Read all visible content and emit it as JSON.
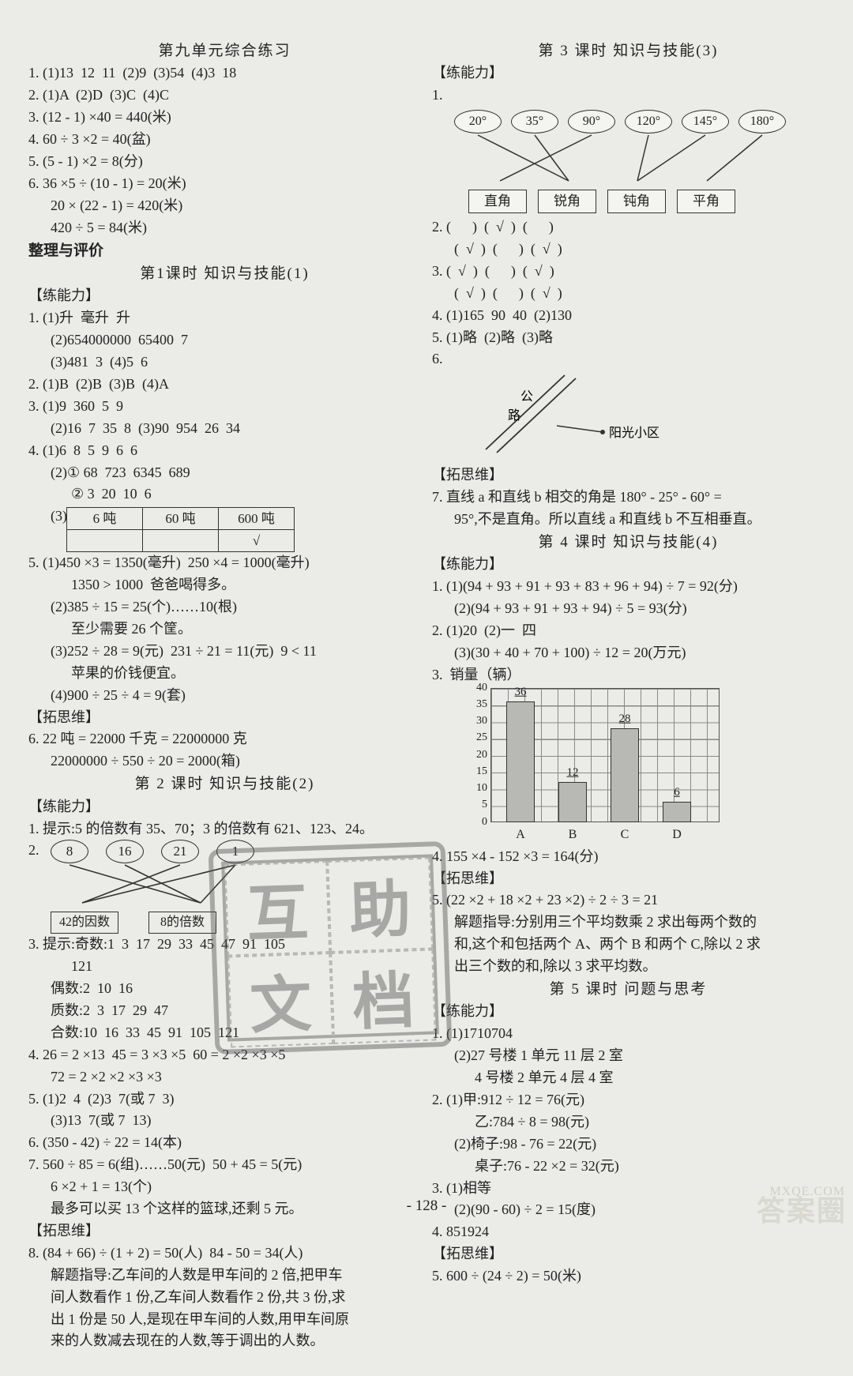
{
  "left": {
    "unit_title": "第九单元综合练习",
    "u9": {
      "l1": "1. (1)13  12  11  (2)9  (3)54  (4)3  18",
      "l2": "2. (1)A  (2)D  (3)C  (4)C",
      "l3": "3. (12 - 1) ×40 = 440(米)",
      "l4": "4. 60 ÷ 3 ×2 = 40(盆)",
      "l5": "5. (5 - 1) ×2 = 8(分)",
      "l6": "6. 36 ×5 ÷ (10 - 1) = 20(米)",
      "l6b": "20 × (22 - 1) = 420(米)",
      "l6c": "420 ÷ 5 = 84(米)"
    },
    "zhengli": "整理与评价",
    "k1_title": "第1课时  知识与技能(1)",
    "lab_lnl": "【练能力】",
    "k1": {
      "l1": "1. (1)升  毫升  升",
      "l1b": "(2)654000000  65400  7",
      "l1c": "(3)481  3  (4)5  6",
      "l2": "2. (1)B  (2)B  (3)B  (4)A",
      "l3": "3. (1)9  360  5  9",
      "l3b": "(2)16  7  35  8  (3)90  954  26  34",
      "l4": "4. (1)6  8  5  9  6  6",
      "l4b": "(2)① 68  723  6345  689",
      "l4c": "② 3  20  10  6",
      "l4d_label": "(3)",
      "tbl": {
        "h1": "6 吨",
        "h2": "60 吨",
        "h3": "600 吨",
        "check": "√"
      },
      "l5": "5. (1)450 ×3 = 1350(毫升)  250 ×4 = 1000(毫升)",
      "l5b": "1350 > 1000  爸爸喝得多。",
      "l5c": "(2)385 ÷ 15 = 25(个)……10(根)",
      "l5d": "至少需要 26 个筐。",
      "l5e": "(3)252 ÷ 28 = 9(元)  231 ÷ 21 = 11(元)  9 < 11",
      "l5f": "苹果的价钱便宜。",
      "l5g": "(4)900 ÷ 25 ÷ 4 = 9(套)"
    },
    "lab_tsw": "【拓思维】",
    "k1_tsw": {
      "l6": "6. 22 吨 = 22000 千克 = 22000000 克",
      "l6b": "22000000 ÷ 550 ÷ 20 = 2000(箱)"
    },
    "k2_title": "第 2 课时  知识与技能(2)",
    "k2": {
      "l1": "1. 提示:5 的倍数有 35、70；3 的倍数有 621、123、24。",
      "l2_label": "2.",
      "ovals": [
        "8",
        "16",
        "21",
        "1"
      ],
      "box1": "42的因数",
      "box2": "8的倍数",
      "l3": "3. 提示:奇数:1  3  17  29  33  45  47  91  105",
      "l3_121": "121",
      "l3b": "偶数:2  10  16",
      "l3c": "质数:2  3  17  29  47",
      "l3d": "合数:10  16  33  45  91  105  121",
      "l4": "4. 26 = 2 ×13  45 = 3 ×3 ×5  60 = 2 ×2 ×3 ×5",
      "l4b": "72 = 2 ×2 ×2 ×3 ×3",
      "l5": "5. (1)2  4  (2)3  7(或 7  3)",
      "l5b": "(3)13  7(或 7  13)",
      "l6": "6. (350 - 42) ÷ 22 = 14(本)",
      "l7": "7. 560 ÷ 85 = 6(组)……50(元)  50 + 45 = 5(元)",
      "l7b": "6 ×2 + 1 = 13(个)",
      "l7c": "最多可以买 13 个这样的篮球,还剩 5 元。"
    },
    "k2_tsw": {
      "l8": "8. (84 + 66) ÷ (1 + 2) = 50(人)  84 - 50 = 34(人)",
      "l8b": "解题指导:乙车间的人数是甲车间的 2 倍,把甲车",
      "l8c": "间人数看作 1 份,乙车间人数看作 2 份,共 3 份,求",
      "l8d": "出 1 份是 50 人,是现在甲车间的人数,用甲车间原",
      "l8e": "来的人数减去现在的人数,等于调出的人数。"
    }
  },
  "right": {
    "k3_title": "第 3 课时  知识与技能(3)",
    "lab_lnl": "【练能力】",
    "k3": {
      "angles": [
        "20°",
        "35°",
        "90°",
        "120°",
        "145°",
        "180°"
      ],
      "boxes": [
        "直角",
        "锐角",
        "钝角",
        "平角"
      ],
      "l2": "2. (      )  (  √  )  (      )",
      "l2b": "(  √  )  (      )  (  √  )",
      "l3": "3. (  √  )  (      )  (  √  )",
      "l3b": "(  √  )  (      )  (  √  )",
      "l4": "4. (1)165  90  40  (2)130",
      "l5": "5. (1)略  (2)略  (3)略",
      "l6_label": "6.",
      "road": {
        "gl": "公",
        "lu": "路",
        "place": "阳光小区"
      }
    },
    "lab_tsw": "【拓思维】",
    "k3_tsw": {
      "l7": "7. 直线 a 和直线 b 相交的角是 180° - 25° - 60° =",
      "l7b": "95°,不是直角。所以直线 a 和直线 b 不互相垂直。"
    },
    "k4_title": "第 4 课时  知识与技能(4)",
    "k4": {
      "l1": "1. (1)(94 + 93 + 91 + 93 + 83 + 96 + 94) ÷ 7 = 92(分)",
      "l1b": "(2)(94 + 93 + 91 + 93 + 94) ÷ 5 = 93(分)",
      "l2": "2. (1)20  (2)一  四",
      "l2b": "(3)(30 + 40 + 70 + 100) ÷ 12 = 20(万元)",
      "l3_label": "3.  销量（辆）",
      "chart": {
        "ymax": 40,
        "ystep": 5,
        "yticks": [
          0,
          5,
          10,
          15,
          20,
          25,
          30,
          35,
          40
        ],
        "cats": [
          "A",
          "B",
          "C",
          "D"
        ],
        "vals": [
          36,
          12,
          28,
          6
        ],
        "bar_color": "#b8b8b5",
        "grid_color": "#888888"
      },
      "l4": "4. 155 ×4 - 152 ×3 = 164(分)"
    },
    "k4_tsw": {
      "l5": "5. (22 ×2 + 18 ×2 + 23 ×2) ÷ 2 ÷ 3 = 21",
      "l5b": "解题指导:分别用三个平均数乘 2 求出每两个数的",
      "l5c": "和,这个和包括两个 A、两个 B 和两个 C,除以 2 求",
      "l5d": "出三个数的和,除以 3 求平均数。"
    },
    "k5_title": "第 5 课时  问题与思考",
    "k5": {
      "l1": "1. (1)1710704",
      "l1b": "(2)27 号楼 1 单元 11 层 2 室",
      "l1c": "4 号楼 2 单元 4 层 4 室",
      "l2": "2. (1)甲:912 ÷ 12 = 76(元)",
      "l2b": "乙:784 ÷ 8 = 98(元)",
      "l2c": "(2)椅子:98 - 76 = 22(元)",
      "l2d": "桌子:76 - 22 ×2 = 32(元)",
      "l3": "3. (1)相等",
      "l3b": "(2)(90 - 60) ÷ 2 = 15(度)",
      "l4": "4. 851924"
    },
    "k5_tsw": {
      "l5": "5. 600 ÷ (24 ÷ 2) = 50(米)"
    }
  },
  "pagenum": "- 128 -",
  "stamp": [
    "互",
    "助",
    "文",
    "档"
  ],
  "wm1": "答案圈",
  "wm2": "MXQE.COM"
}
